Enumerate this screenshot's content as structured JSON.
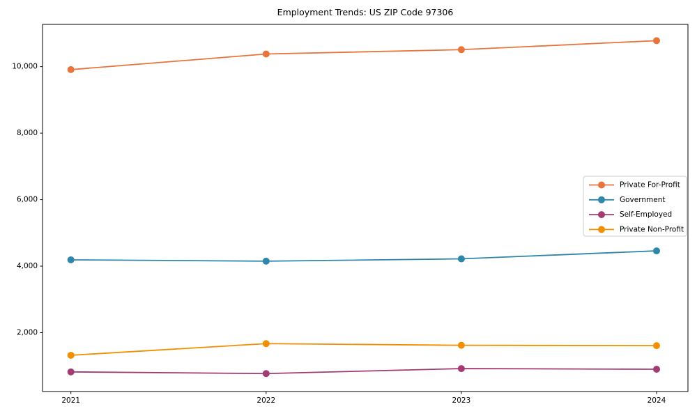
{
  "chart_data": {
    "type": "line",
    "title": "Employment Trends: US ZIP Code 97306",
    "x": [
      2021,
      2022,
      2023,
      2024
    ],
    "xtick_labels": [
      "2021",
      "2022",
      "2023",
      "2024"
    ],
    "series": [
      {
        "name": "Private For-Profit",
        "color": "#E8743B",
        "values": [
          9910,
          10380,
          10510,
          10780
        ]
      },
      {
        "name": "Government",
        "color": "#2E86AB",
        "values": [
          4190,
          4150,
          4220,
          4460
        ]
      },
      {
        "name": "Self-Employed",
        "color": "#A23B72",
        "values": [
          820,
          770,
          920,
          900
        ]
      },
      {
        "name": "Private Non-Profit",
        "color": "#F18F01",
        "values": [
          1320,
          1670,
          1620,
          1610
        ]
      }
    ],
    "xlabel": "",
    "ylabel": "",
    "ylim": [
      230,
      11270
    ],
    "yticks": [
      2000,
      4000,
      6000,
      8000,
      10000
    ],
    "ytick_labels": [
      "2,000",
      "4,000",
      "6,000",
      "8,000",
      "10,000"
    ],
    "grid": false,
    "legend_position": "center-right",
    "marker": "circle",
    "colors": {
      "axis": "#000000",
      "tick_label": "#000000",
      "legend_border": "#cccccc",
      "background": "#ffffff"
    }
  }
}
